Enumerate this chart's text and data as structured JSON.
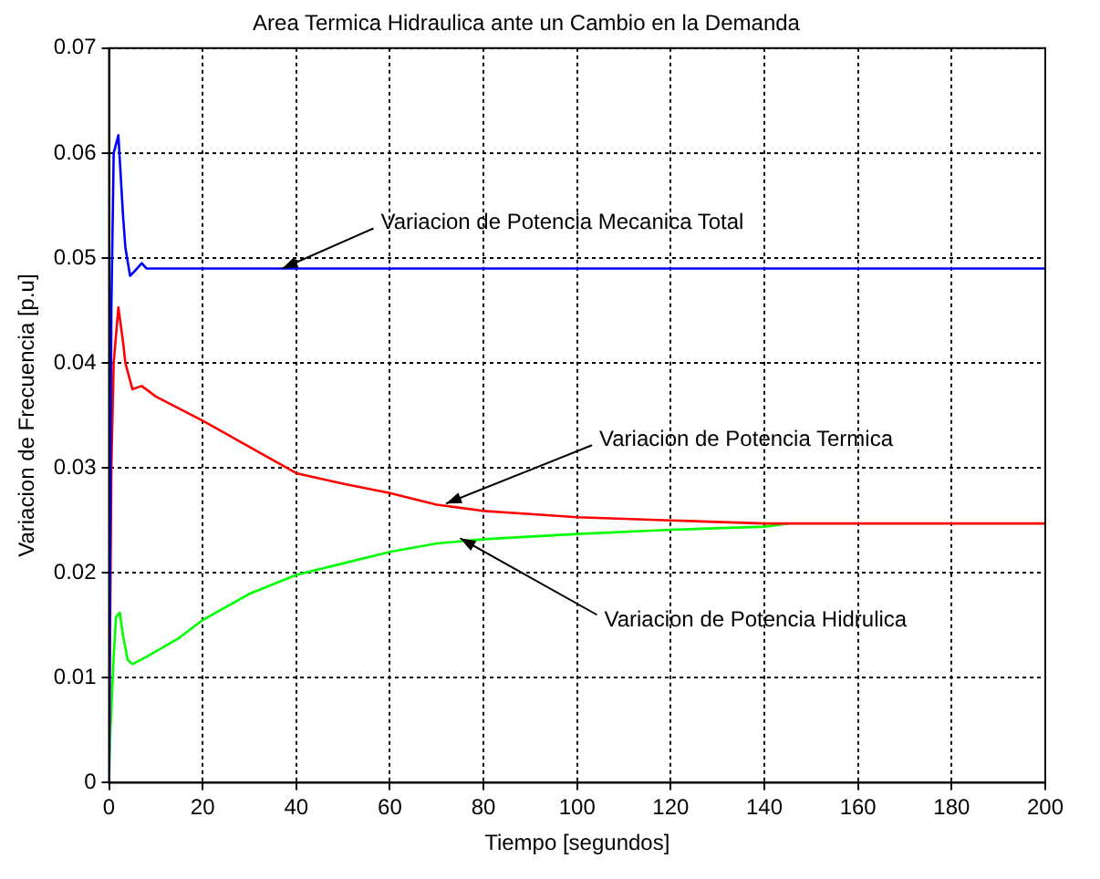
{
  "chart_data": {
    "type": "line",
    "title": "Area Termica Hidraulica ante un Cambio en la Demanda",
    "xlabel": "Tiempo [segundos]",
    "ylabel": "Variacion de Frecuencia [p.u]",
    "xlim": [
      0,
      200
    ],
    "xticks": [
      0,
      20,
      40,
      60,
      80,
      100,
      120,
      140,
      160,
      180,
      200
    ],
    "ylim": [
      0,
      0.07
    ],
    "yticks": [
      0,
      0.01,
      0.02,
      0.03,
      0.04,
      0.05,
      0.06,
      0.07
    ],
    "grid": true,
    "legend": false,
    "marker": "none",
    "line_style": "solid",
    "series": [
      {
        "color": "#0000ff",
        "x": [
          0,
          0.5,
          1,
          2,
          3,
          3.5,
          4.5,
          6,
          7,
          8,
          20,
          50,
          100,
          150,
          200
        ],
        "values": [
          0,
          0.045,
          0.06,
          0.0617,
          0.054,
          0.051,
          0.0483,
          0.049,
          0.0495,
          0.049,
          0.049,
          0.049,
          0.049,
          0.049,
          0.049
        ]
      },
      {
        "color": "#ff0000",
        "x": [
          0,
          0.5,
          1,
          2,
          3,
          3.5,
          5,
          7,
          10,
          20,
          30,
          40,
          50,
          60,
          70,
          80,
          90,
          100,
          120,
          140,
          160,
          200
        ],
        "values": [
          0,
          0.03,
          0.04,
          0.0453,
          0.042,
          0.04,
          0.0375,
          0.0378,
          0.0368,
          0.0345,
          0.032,
          0.0295,
          0.0285,
          0.0276,
          0.0265,
          0.0259,
          0.0256,
          0.0253,
          0.025,
          0.0247,
          0.0247,
          0.0247
        ]
      },
      {
        "color": "#00ff00",
        "x": [
          0,
          0.3,
          1,
          1.5,
          2.3,
          3,
          4,
          5,
          8,
          15,
          20,
          30,
          40,
          50,
          60,
          70,
          80,
          100,
          120,
          140,
          145
        ],
        "values": [
          0,
          0.005,
          0.012,
          0.0158,
          0.0162,
          0.014,
          0.0117,
          0.0113,
          0.012,
          0.0138,
          0.0155,
          0.018,
          0.0198,
          0.0209,
          0.022,
          0.0228,
          0.0232,
          0.0237,
          0.0241,
          0.0244,
          0.0247
        ]
      }
    ],
    "annotations": [
      {
        "text": "Variacion de Potencia Mecanica Total",
        "x": 37,
        "y": 0.049
      },
      {
        "text": "Variacion de Potencia Termica",
        "x": 72,
        "y": 0.0266
      },
      {
        "text": "Variacion de Potencia Hidrulica",
        "x": 75,
        "y": 0.0233
      }
    ]
  }
}
